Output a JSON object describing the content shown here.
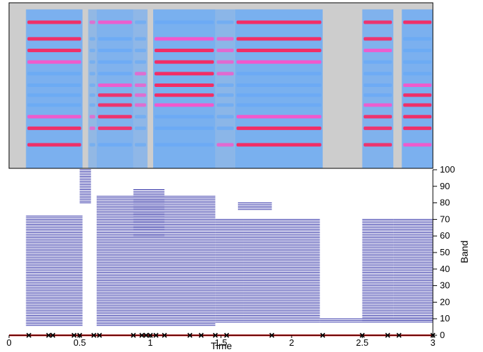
{
  "chart_data": [
    {
      "type": "heatmap",
      "title": "",
      "xlabel": "",
      "ylabel": "",
      "x_range": [
        0,
        3
      ],
      "colormap": [
        "#cdcdcd",
        "#6aaaf5",
        "#ff4fc8",
        "#ff1f57"
      ],
      "harmonic_rows_from_top": [
        0.12,
        0.22,
        0.29,
        0.36,
        0.43,
        0.5,
        0.56,
        0.62,
        0.69,
        0.76,
        0.86
      ],
      "segments": [
        {
          "t0": 0.12,
          "t1": 0.52,
          "energy": 0.95
        },
        {
          "t0": 0.56,
          "t1": 0.62,
          "energy": 0.35
        },
        {
          "t0": 0.62,
          "t1": 0.88,
          "energy": 0.85
        },
        {
          "t0": 0.88,
          "t1": 0.98,
          "energy": 0.45
        },
        {
          "t0": 1.02,
          "t1": 1.46,
          "energy": 1.0
        },
        {
          "t0": 1.46,
          "t1": 1.6,
          "energy": 0.55
        },
        {
          "t0": 1.6,
          "t1": 2.22,
          "energy": 1.0
        },
        {
          "t0": 2.5,
          "t1": 2.72,
          "energy": 0.85
        },
        {
          "t0": 2.78,
          "t1": 3.0,
          "energy": 0.95
        }
      ]
    },
    {
      "type": "scatter",
      "title": "",
      "xlabel": "Time",
      "ylabel": "Band",
      "xlim": [
        0,
        3
      ],
      "ylim": [
        0,
        100
      ],
      "x_ticks": [
        "0",
        "0.5",
        "1",
        "1.5",
        "2",
        "2.5",
        "3"
      ],
      "y_ticks": [
        "0",
        "10",
        "20",
        "30",
        "40",
        "50",
        "60",
        "70",
        "80",
        "90",
        "100"
      ],
      "y_axis_side": "right",
      "line_color": "#3333a8",
      "band_segments": [
        {
          "t0": 0.12,
          "t1": 0.52,
          "band_min": 6,
          "band_max": 72
        },
        {
          "t0": 0.5,
          "t1": 0.58,
          "band_min": 80,
          "band_max": 100
        },
        {
          "t0": 0.62,
          "t1": 1.46,
          "band_min": 6,
          "band_max": 84
        },
        {
          "t0": 0.88,
          "t1": 1.1,
          "band_min": 60,
          "band_max": 88
        },
        {
          "t0": 1.46,
          "t1": 1.66,
          "band_min": 8,
          "band_max": 70
        },
        {
          "t0": 1.66,
          "t1": 2.2,
          "band_min": 8,
          "band_max": 70
        },
        {
          "t0": 1.62,
          "t1": 1.86,
          "band_min": 76,
          "band_max": 80
        },
        {
          "t0": 2.2,
          "t1": 3.0,
          "band_min": 8,
          "band_max": 10
        },
        {
          "t0": 2.5,
          "t1": 2.72,
          "band_min": 8,
          "band_max": 70
        },
        {
          "t0": 2.72,
          "t1": 3.0,
          "band_min": 8,
          "band_max": 70
        }
      ],
      "boundary_markers_x": [
        0.14,
        0.28,
        0.31,
        0.46,
        0.5,
        0.6,
        0.64,
        0.88,
        0.94,
        0.97,
        1.0,
        1.04,
        1.1,
        1.28,
        1.36,
        1.46,
        1.54,
        1.86,
        2.22,
        2.5,
        2.68,
        2.76,
        3.0
      ],
      "boundary_line_color": "#e01010"
    }
  ]
}
